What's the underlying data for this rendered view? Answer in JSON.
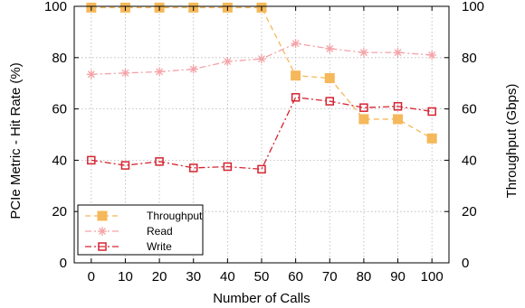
{
  "chart_data": {
    "type": "line",
    "x": [
      0,
      10,
      20,
      30,
      40,
      50,
      60,
      70,
      80,
      90,
      100
    ],
    "xlabel": "Number of Calls",
    "ylabel_left": "PCIe Metric - Hit Rate (%)",
    "ylabel_right": "Throughput (Gbps)",
    "ylim": [
      0,
      100
    ],
    "yticks": [
      0,
      20,
      40,
      60,
      80,
      100
    ],
    "grid": true,
    "legend_position": "bottom-left",
    "series": [
      {
        "name": "Throughput",
        "axis": "right",
        "color": "#f5b85a",
        "marker": "filled-square",
        "line": "dashed",
        "values": [
          99.5,
          99.5,
          99.5,
          99.5,
          99.5,
          99.5,
          73,
          72,
          56,
          56,
          48.5
        ]
      },
      {
        "name": "Read",
        "axis": "left",
        "color": "#f4a3a8",
        "marker": "asterisk",
        "line": "dash-dot",
        "values": [
          73.5,
          74,
          74.5,
          75.5,
          78.5,
          79.5,
          85.5,
          83.5,
          82,
          82,
          81
        ]
      },
      {
        "name": "Write",
        "axis": "left",
        "color": "#d62430",
        "marker": "open-square",
        "line": "dash-dot",
        "values": [
          40,
          38,
          39.5,
          37,
          37.5,
          36.5,
          64.5,
          63,
          60.5,
          61,
          59
        ]
      }
    ]
  }
}
